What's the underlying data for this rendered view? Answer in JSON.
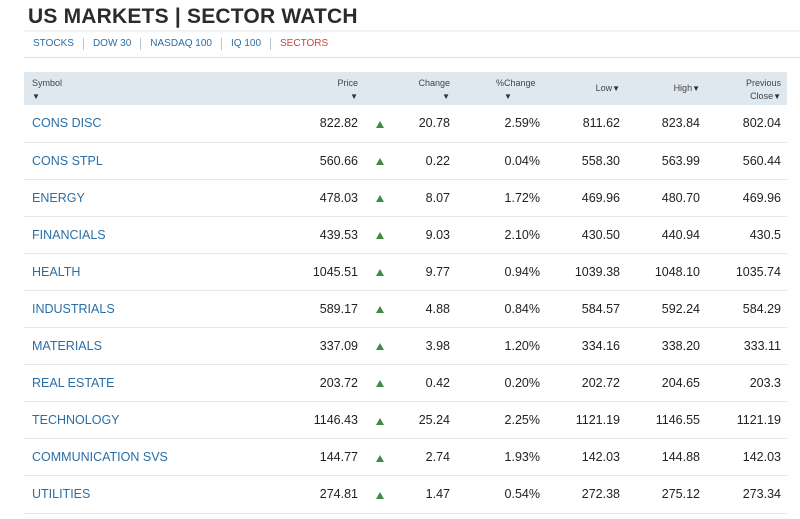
{
  "header": {
    "title": "US MARKETS | SECTOR WATCH"
  },
  "tabs": [
    {
      "label": "STOCKS"
    },
    {
      "label": "DOW 30"
    },
    {
      "label": "NASDAQ 100"
    },
    {
      "label": "IQ 100"
    },
    {
      "label": "SECTORS"
    }
  ],
  "active_tab": "SECTORS",
  "colors": {
    "link": "#2a6ea6",
    "active_tab": "#d0463b",
    "up": "#3e8e41",
    "header_bg": "#dfe8ef"
  },
  "columns": {
    "symbol": "Symbol",
    "price": "Price",
    "change": "Change",
    "pct_change": "%Change",
    "low": "Low",
    "high": "High",
    "prev_close_line1": "Previous",
    "prev_close_line2": "Close",
    "sort_glyph": "▼"
  },
  "rows": [
    {
      "symbol": "CONS DISC",
      "price": "822.82",
      "direction": "up",
      "change": "20.78",
      "pct": "2.59%",
      "low": "811.62",
      "high": "823.84",
      "prev": "802.04"
    },
    {
      "symbol": "CONS STPL",
      "price": "560.66",
      "direction": "up",
      "change": "0.22",
      "pct": "0.04%",
      "low": "558.30",
      "high": "563.99",
      "prev": "560.44"
    },
    {
      "symbol": "ENERGY",
      "price": "478.03",
      "direction": "up",
      "change": "8.07",
      "pct": "1.72%",
      "low": "469.96",
      "high": "480.70",
      "prev": "469.96"
    },
    {
      "symbol": "FINANCIALS",
      "price": "439.53",
      "direction": "up",
      "change": "9.03",
      "pct": "2.10%",
      "low": "430.50",
      "high": "440.94",
      "prev": "430.5"
    },
    {
      "symbol": "HEALTH",
      "price": "1045.51",
      "direction": "up",
      "change": "9.77",
      "pct": "0.94%",
      "low": "1039.38",
      "high": "1048.10",
      "prev": "1035.74"
    },
    {
      "symbol": "INDUSTRIALS",
      "price": "589.17",
      "direction": "up",
      "change": "4.88",
      "pct": "0.84%",
      "low": "584.57",
      "high": "592.24",
      "prev": "584.29"
    },
    {
      "symbol": "MATERIALS",
      "price": "337.09",
      "direction": "up",
      "change": "3.98",
      "pct": "1.20%",
      "low": "334.16",
      "high": "338.20",
      "prev": "333.11"
    },
    {
      "symbol": "REAL ESTATE",
      "price": "203.72",
      "direction": "up",
      "change": "0.42",
      "pct": "0.20%",
      "low": "202.72",
      "high": "204.65",
      "prev": "203.3"
    },
    {
      "symbol": "TECHNOLOGY",
      "price": "1146.43",
      "direction": "up",
      "change": "25.24",
      "pct": "2.25%",
      "low": "1121.19",
      "high": "1146.55",
      "prev": "1121.19"
    },
    {
      "symbol": "COMMUNICATION SVS",
      "price": "144.77",
      "direction": "up",
      "change": "2.74",
      "pct": "1.93%",
      "low": "142.03",
      "high": "144.88",
      "prev": "142.03"
    },
    {
      "symbol": "UTILITIES",
      "price": "274.81",
      "direction": "up",
      "change": "1.47",
      "pct": "0.54%",
      "low": "272.38",
      "high": "275.12",
      "prev": "273.34"
    }
  ]
}
